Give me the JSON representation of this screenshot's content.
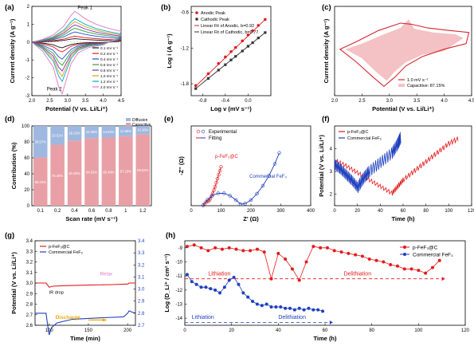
{
  "panel_labels": [
    "(a)",
    "(b)",
    "(c)",
    "(d)",
    "(e)",
    "(f)",
    "(g)",
    "(h)"
  ],
  "chart_data": [
    {
      "id": "a",
      "type": "line",
      "xlabel": "Potential (V vs. Li/Li⁺)",
      "ylabel": "Current density (A g⁻¹)",
      "xlim": [
        2.0,
        4.5
      ],
      "ylim": [
        -3,
        2
      ],
      "xticks": [
        "2.0",
        "2.5",
        "3.0",
        "3.5",
        "4.0",
        "4.5"
      ],
      "yticks": [
        "-3",
        "-2",
        "-1",
        "0",
        "1",
        "2"
      ],
      "annotations": [
        "Peak 1",
        "Peak 2"
      ],
      "legend_position": "right",
      "series": [
        {
          "name": "0.1 mV s⁻¹",
          "color": "#111111",
          "scale": 0.11
        },
        {
          "name": "0.2 mV s⁻¹",
          "color": "#e31a1c",
          "scale": 0.19
        },
        {
          "name": "0.4 mV s⁻¹",
          "color": "#1f4fd8",
          "scale": 0.33
        },
        {
          "name": "0.6 mV s⁻¹",
          "color": "#2ca02c",
          "scale": 0.45
        },
        {
          "name": "0.8 mV s⁻¹",
          "color": "#7b2fbe",
          "scale": 0.56
        },
        {
          "name": "1.0 mV s⁻¹",
          "color": "#d4a017",
          "scale": 0.66
        },
        {
          "name": "1.2 mV s⁻¹",
          "color": "#00a6c8",
          "scale": 0.76
        },
        {
          "name": "2.0 mV s⁻¹",
          "color": "#e377c2",
          "scale": 1.0
        }
      ],
      "template": {
        "anodic": [
          [
            2.0,
            0.0
          ],
          [
            2.3,
            0.15
          ],
          [
            2.6,
            0.4
          ],
          [
            2.9,
            0.9
          ],
          [
            3.1,
            1.5
          ],
          [
            3.2,
            1.72
          ],
          [
            3.3,
            1.6
          ],
          [
            3.5,
            1.3
          ],
          [
            3.8,
            1.0
          ],
          [
            4.1,
            0.8
          ],
          [
            4.5,
            0.6
          ]
        ],
        "cathodic": [
          [
            4.5,
            0.6
          ],
          [
            4.4,
            0.2
          ],
          [
            4.0,
            -0.15
          ],
          [
            3.6,
            -0.3
          ],
          [
            3.3,
            -0.6
          ],
          [
            3.1,
            -1.2
          ],
          [
            2.95,
            -2.2
          ],
          [
            2.85,
            -2.9
          ],
          [
            2.75,
            -2.5
          ],
          [
            2.6,
            -1.4
          ],
          [
            2.3,
            -0.5
          ],
          [
            2.0,
            0.0
          ]
        ]
      }
    },
    {
      "id": "b",
      "type": "scatter",
      "xlabel": "Log v (mV s⁻¹)",
      "ylabel": "Log i (A g⁻¹)",
      "xlim": [
        -1.0,
        0.4
      ],
      "ylim": [
        -2.0,
        -0.5
      ],
      "xticks": [
        "-0.8",
        "-0.4",
        "0.0"
      ],
      "xtick_values": [
        -0.8,
        -0.4,
        0.0
      ],
      "yticks": [
        "-1.8",
        "-1.2",
        "-0.6"
      ],
      "ytick_values": [
        -1.8,
        -1.2,
        -0.6
      ],
      "legend_position": "top-left",
      "series": [
        {
          "name": "Anodic Peak",
          "color": "#e31a1c",
          "marker": "circle",
          "x": [
            -0.92,
            -0.7,
            -0.52,
            -0.4,
            -0.3,
            -0.22,
            -0.1,
            0.0,
            0.08,
            0.18,
            0.3
          ],
          "y": [
            -1.83,
            -1.63,
            -1.46,
            -1.35,
            -1.26,
            -1.19,
            -1.08,
            -0.98,
            -0.91,
            -0.82,
            -0.72
          ]
        },
        {
          "name": "Cathodic Peak",
          "color": "#333333",
          "marker": "square",
          "x": [
            -0.92,
            -0.7,
            -0.52,
            -0.4,
            -0.3,
            -0.22,
            -0.1,
            0.0,
            0.08,
            0.18,
            0.3
          ],
          "y": [
            -1.88,
            -1.71,
            -1.57,
            -1.48,
            -1.4,
            -1.34,
            -1.25,
            -1.17,
            -1.11,
            -1.03,
            -0.94
          ]
        }
      ],
      "fits": [
        {
          "name": "Linear Fit of Anodic, b=0.92",
          "color": "#e31a1c",
          "x": [
            -0.92,
            0.3
          ],
          "y": [
            -1.84,
            -0.72
          ]
        },
        {
          "name": "Linear Fit of Cathodic, b=0.77",
          "color": "#333333",
          "x": [
            -0.92,
            0.3
          ],
          "y": [
            -1.88,
            -0.94
          ]
        }
      ]
    },
    {
      "id": "c",
      "type": "area",
      "xlabel": "Potential (V vs. Li/Li⁺)",
      "ylabel": "Current density (A g⁻¹)",
      "xlim": [
        2.0,
        4.5
      ],
      "ylim": [
        -1.2,
        1.2
      ],
      "xticks": [
        "2.0",
        "2.5",
        "3.0",
        "3.5",
        "4.0",
        "4.5"
      ],
      "legend": [
        "1.0 mV s⁻¹",
        "Capacitive: 87.15%"
      ],
      "legend_position": "bottom-right",
      "outer": [
        [
          2.1,
          0.05
        ],
        [
          2.4,
          0.25
        ],
        [
          2.8,
          0.55
        ],
        [
          3.2,
          0.75
        ],
        [
          3.4,
          0.72
        ],
        [
          3.7,
          0.62
        ],
        [
          4.1,
          0.55
        ],
        [
          4.45,
          0.5
        ],
        [
          4.4,
          0.2
        ],
        [
          4.0,
          0.05
        ],
        [
          3.6,
          -0.15
        ],
        [
          3.3,
          -0.4
        ],
        [
          3.1,
          -0.7
        ],
        [
          2.9,
          -0.95
        ],
        [
          2.7,
          -0.7
        ],
        [
          2.4,
          -0.3
        ],
        [
          2.1,
          0.05
        ]
      ],
      "inner": [
        [
          2.2,
          0.05
        ],
        [
          2.5,
          0.2
        ],
        [
          2.9,
          0.45
        ],
        [
          3.2,
          0.62
        ],
        [
          3.35,
          0.85
        ],
        [
          3.45,
          0.6
        ],
        [
          3.8,
          0.5
        ],
        [
          4.2,
          0.45
        ],
        [
          4.35,
          0.35
        ],
        [
          4.0,
          0.0
        ],
        [
          3.6,
          -0.1
        ],
        [
          3.3,
          -0.3
        ],
        [
          3.1,
          -0.55
        ],
        [
          2.95,
          -0.8
        ],
        [
          2.75,
          -0.55
        ],
        [
          2.5,
          -0.2
        ],
        [
          2.2,
          0.05
        ]
      ]
    },
    {
      "id": "d",
      "type": "bar",
      "xlabel": "Scan rate (mV s⁻¹)",
      "ylabel": "Contribution (%)",
      "categories": [
        "0.1",
        "0.2",
        "0.4",
        "0.6",
        "0.8",
        "1",
        "1.2"
      ],
      "ylim": [
        0,
        100
      ],
      "yticks": [
        "0",
        "20",
        "40",
        "60",
        "80",
        "100"
      ],
      "series": [
        {
          "name": "Capacitive",
          "color": "#e8a0a6",
          "values": [
            60.43,
            76.49,
            81.68,
            84.62,
            85.48,
            87.15,
            89.62
          ],
          "labels": [
            "60.43%",
            "76.49%",
            "81.68%",
            "84.62%",
            "85.48%",
            "87.15%",
            "89.62%"
          ]
        },
        {
          "name": "Diffusion",
          "color": "#9fb8e0",
          "values": [
            39.57,
            23.51,
            18.32,
            15.38,
            14.52,
            12.85,
            10.38
          ],
          "labels": [
            "39.57%",
            "23.51%",
            "18.32%",
            "15.38%",
            "14.52%",
            "12.85%",
            "10.38%"
          ]
        }
      ],
      "legend_position": "top-right"
    },
    {
      "id": "e",
      "type": "scatter",
      "xlabel": "Z' (Ω)",
      "ylabel": "-Z'' (Ω)",
      "xlim": [
        0,
        400
      ],
      "ylim": [
        0,
        400
      ],
      "xticks": [
        "0",
        "100",
        "200",
        "300",
        "400"
      ],
      "yticks": [],
      "legend": [
        "Experimental",
        "Fitting"
      ],
      "legend_position": "top-left",
      "series": [
        {
          "name": "p-FeF₃@C",
          "color": "#e31a1c",
          "x": [
            40,
            45,
            50,
            55,
            60,
            64,
            68,
            72,
            76,
            80,
            84,
            88,
            92,
            96,
            100
          ],
          "y": [
            2,
            10,
            18,
            22,
            25,
            35,
            48,
            62,
            78,
            95,
            115,
            135,
            155,
            175,
            195
          ]
        },
        {
          "name": "Commercial FeF₃",
          "color": "#1f3fbf",
          "x": [
            40,
            55,
            70,
            90,
            110,
            130,
            150,
            165,
            180,
            200,
            220,
            240,
            260,
            280,
            295
          ],
          "y": [
            2,
            30,
            50,
            62,
            62,
            50,
            28,
            8,
            10,
            28,
            60,
            100,
            150,
            210,
            265
          ]
        }
      ]
    },
    {
      "id": "f",
      "type": "line",
      "xlabel": "Time (h)",
      "ylabel": "Potential (V vs. Li/Li⁺)",
      "xlim": [
        0,
        120
      ],
      "ylim": [
        1.5,
        5.0
      ],
      "xticks": [
        "0",
        "20",
        "40",
        "60",
        "80",
        "100",
        "120"
      ],
      "yticks": [
        "2",
        "3",
        "4"
      ],
      "ytick_values": [
        2,
        3,
        4
      ],
      "legend_position": "top-left",
      "series": [
        {
          "name": "p-FeF₃@C",
          "color": "#e31a1c",
          "t": [
            0,
            10,
            20,
            30,
            40,
            50,
            55,
            60,
            70,
            80,
            90,
            100,
            110
          ],
          "v": [
            3.45,
            3.2,
            2.9,
            2.6,
            2.3,
            2.0,
            2.3,
            2.6,
            3.0,
            3.4,
            3.8,
            4.2,
            4.45
          ]
        },
        {
          "name": "Commercial FeF₃",
          "color": "#1f3fbf",
          "t": [
            0,
            5,
            10,
            15,
            20,
            25,
            30,
            40,
            50,
            55,
            58
          ],
          "v": [
            3.2,
            3.0,
            2.75,
            2.5,
            2.2,
            2.6,
            2.9,
            3.3,
            3.7,
            4.1,
            4.45
          ]
        }
      ]
    },
    {
      "id": "g",
      "type": "line",
      "xlabel": "Time (min)",
      "ylabel": "Potential (V vs. Li/Li⁺)",
      "xlim": [
        82,
        210
      ],
      "ylim": [
        2.6,
        3.4
      ],
      "ylim_right": [
        2.7,
        3.4
      ],
      "xticks": [
        "100",
        "150",
        "200"
      ],
      "xtick_values": [
        100,
        150,
        200
      ],
      "yticks": [
        "2.6",
        "2.7",
        "2.8",
        "2.9",
        "3.0",
        "3.1",
        "3.2",
        "3.3",
        "3.4"
      ],
      "yticks_right": [
        "2.7",
        "2.8",
        "2.9",
        "3.0",
        "3.1",
        "3.2",
        "3.3",
        "3.4"
      ],
      "annotations": [
        "Relax",
        "IR drop",
        "Discharge"
      ],
      "legend_position": "top-left",
      "series": [
        {
          "name": "p-FeF₃@C",
          "color": "#e31a1c",
          "t": [
            82,
            96,
            98,
            100,
            105,
            120,
            150,
            180,
            200,
            202,
            205,
            210
          ],
          "v": [
            3.0,
            3.0,
            2.98,
            2.96,
            2.97,
            2.975,
            2.98,
            2.985,
            2.99,
            3.0,
            3.0,
            3.0
          ]
        },
        {
          "name": "Commercial FeF₃",
          "color": "#1f3fbf",
          "t": [
            82,
            96,
            98,
            100,
            103,
            110,
            130,
            160,
            195,
            200,
            202,
            205,
            210
          ],
          "v": [
            2.8,
            2.8,
            2.7,
            2.62,
            2.68,
            2.72,
            2.75,
            2.76,
            2.77,
            2.8,
            2.82,
            2.81,
            2.8
          ]
        }
      ]
    },
    {
      "id": "h",
      "type": "line",
      "xlabel": "Time (h)",
      "ylabel": "Log (D_Li⁺ / cm² s⁻¹)",
      "xlim": [
        0,
        120
      ],
      "ylim": [
        -14.5,
        -8.5
      ],
      "xticks": [
        "0",
        "20",
        "40",
        "60",
        "80",
        "100",
        "120"
      ],
      "yticks": [
        "-14",
        "-13",
        "-12",
        "-11",
        "-10",
        "-9"
      ],
      "ytick_values": [
        -14,
        -13,
        -12,
        -11,
        -10,
        -9
      ],
      "annotations": [
        "Lithiation",
        "Delithiation",
        "Lithiation",
        "Delithiation"
      ],
      "legend_position": "top-right",
      "series": [
        {
          "name": "p-FeF₃@C",
          "color": "#e31a1c",
          "t": [
            1,
            4,
            7,
            10,
            13,
            16,
            19,
            22,
            25,
            28,
            31,
            34,
            37,
            40,
            43,
            46,
            49,
            52,
            55,
            58,
            61,
            64,
            67,
            70,
            73,
            76,
            79,
            82,
            85,
            88,
            91,
            94,
            97,
            100,
            103,
            106,
            109
          ],
          "v": [
            -8.9,
            -8.8,
            -9.0,
            -9.2,
            -9.0,
            -9.1,
            -9.0,
            -9.1,
            -9.2,
            -9.2,
            -9.1,
            -9.3,
            -11.2,
            -9.4,
            -9.8,
            -10.5,
            -11.3,
            -10.0,
            -8.9,
            -9.0,
            -9.0,
            -9.2,
            -9.3,
            -9.4,
            -9.5,
            -9.6,
            -9.8,
            -9.9,
            -10.0,
            -10.2,
            -10.3,
            -10.5,
            -10.5,
            -10.6,
            -10.8,
            -10.4,
            -9.9
          ]
        },
        {
          "name": "Commercial FeF₃",
          "color": "#1f3fbf",
          "t": [
            1,
            3,
            5,
            7,
            9,
            11,
            13,
            15,
            17,
            19,
            21,
            23,
            25,
            27,
            29,
            31,
            33,
            35,
            37,
            39,
            41,
            43,
            45,
            47,
            49,
            51,
            53,
            55,
            57,
            59
          ],
          "v": [
            -10.9,
            -11.4,
            -11.6,
            -11.8,
            -11.8,
            -11.9,
            -12.0,
            -12.2,
            -11.8,
            -11.3,
            -11.1,
            -11.6,
            -12.2,
            -12.5,
            -12.8,
            -13.0,
            -13.1,
            -13.0,
            -13.2,
            -13.2,
            -13.2,
            -13.3,
            -13.3,
            -13.4,
            -13.3,
            -13.4,
            -13.3,
            -13.4,
            -13.4,
            -13.5
          ]
        }
      ],
      "ref_lines": [
        {
          "color": "#e31a1c",
          "y": -11.2,
          "x": [
            0,
            110
          ]
        },
        {
          "color": "#1f3fbf",
          "y": -14.3,
          "x": [
            0,
            62
          ]
        }
      ]
    }
  ]
}
